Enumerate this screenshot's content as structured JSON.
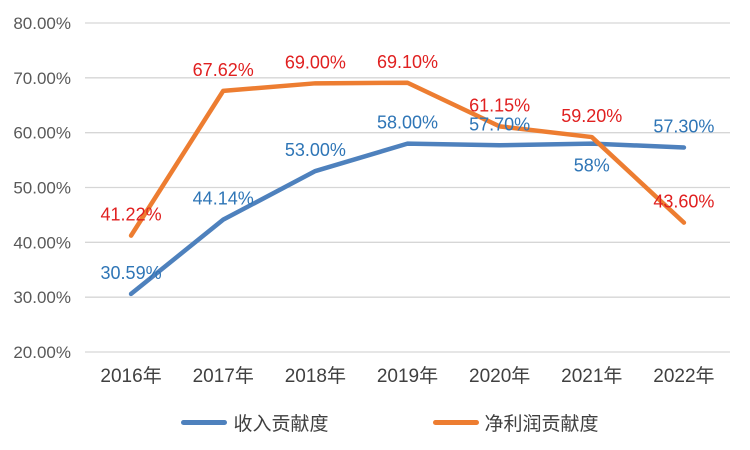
{
  "chart_data": {
    "type": "line",
    "title": "",
    "categories": [
      "2016年",
      "2017年",
      "2018年",
      "2019年",
      "2020年",
      "2021年",
      "2022年"
    ],
    "series": [
      {
        "name": "收入贡献度",
        "color": "#4E81BD",
        "label_color": "#2E75B6",
        "values": [
          30.59,
          44.14,
          53.0,
          58.0,
          57.7,
          58,
          57.3
        ],
        "labels": [
          "30.59%",
          "44.14%",
          "53.00%",
          "58.00%",
          "57.70%",
          "58%",
          "57.30%"
        ],
        "label_positions": [
          "above",
          "above",
          "above",
          "above",
          "above",
          "below",
          "above"
        ]
      },
      {
        "name": "净利润贡献度",
        "color": "#ED7D31",
        "label_color": "#E02020",
        "values": [
          41.22,
          67.62,
          69.0,
          69.1,
          61.15,
          59.2,
          43.6
        ],
        "labels": [
          "41.22%",
          "67.62%",
          "69.00%",
          "69.10%",
          "61.15%",
          "59.20%",
          "43.60%"
        ],
        "label_positions": [
          "above",
          "above",
          "above",
          "above",
          "above",
          "above",
          "above"
        ]
      }
    ],
    "y_axis": {
      "min": 20,
      "max": 80,
      "step": 10,
      "tick_labels": [
        "80.00%",
        "70.00%",
        "60.00%",
        "50.00%",
        "40.00%",
        "30.00%",
        "20.00%"
      ]
    },
    "x_axis": {
      "tick_labels": [
        "2016年",
        "2017年",
        "2018年",
        "2019年",
        "2020年",
        "2021年",
        "2022年"
      ]
    },
    "grid": true,
    "legend_position": "bottom",
    "colors": {
      "background": "#FFFFFF",
      "gridline": "#D6D6D6",
      "y_tick_text": "#595959",
      "x_tick_text": "#404040",
      "legend_text": "#404040"
    }
  }
}
